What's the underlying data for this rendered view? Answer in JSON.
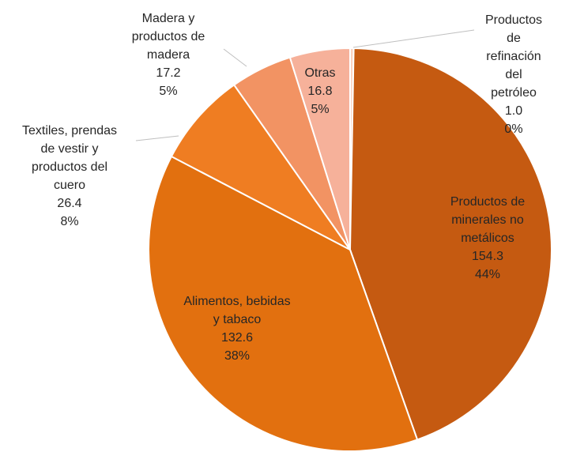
{
  "chart_data": {
    "type": "pie",
    "categories": [
      "Productos\nde\nrefinación\ndel petróleo",
      "Productos de\nminerales no\nmetálicos",
      "Alimentos, bebidas\ny tabaco",
      "Textiles, prendas\nde vestir y\nproductos del\ncuero",
      "Madera y\nproductos de\nmadera",
      "Otras"
    ],
    "values": [
      1.0,
      154.3,
      132.6,
      26.4,
      17.2,
      16.8
    ],
    "value_labels": [
      "1.0",
      "154.3",
      "132.6",
      "26.4",
      "17.2",
      "16.8"
    ],
    "percent_labels": [
      "0%",
      "44%",
      "38%",
      "8%",
      "5%",
      "5%"
    ],
    "colors": [
      "#fbd3c0",
      "#c55a11",
      "#e2700f",
      "#ef7d22",
      "#f29363",
      "#f6b19a"
    ]
  }
}
